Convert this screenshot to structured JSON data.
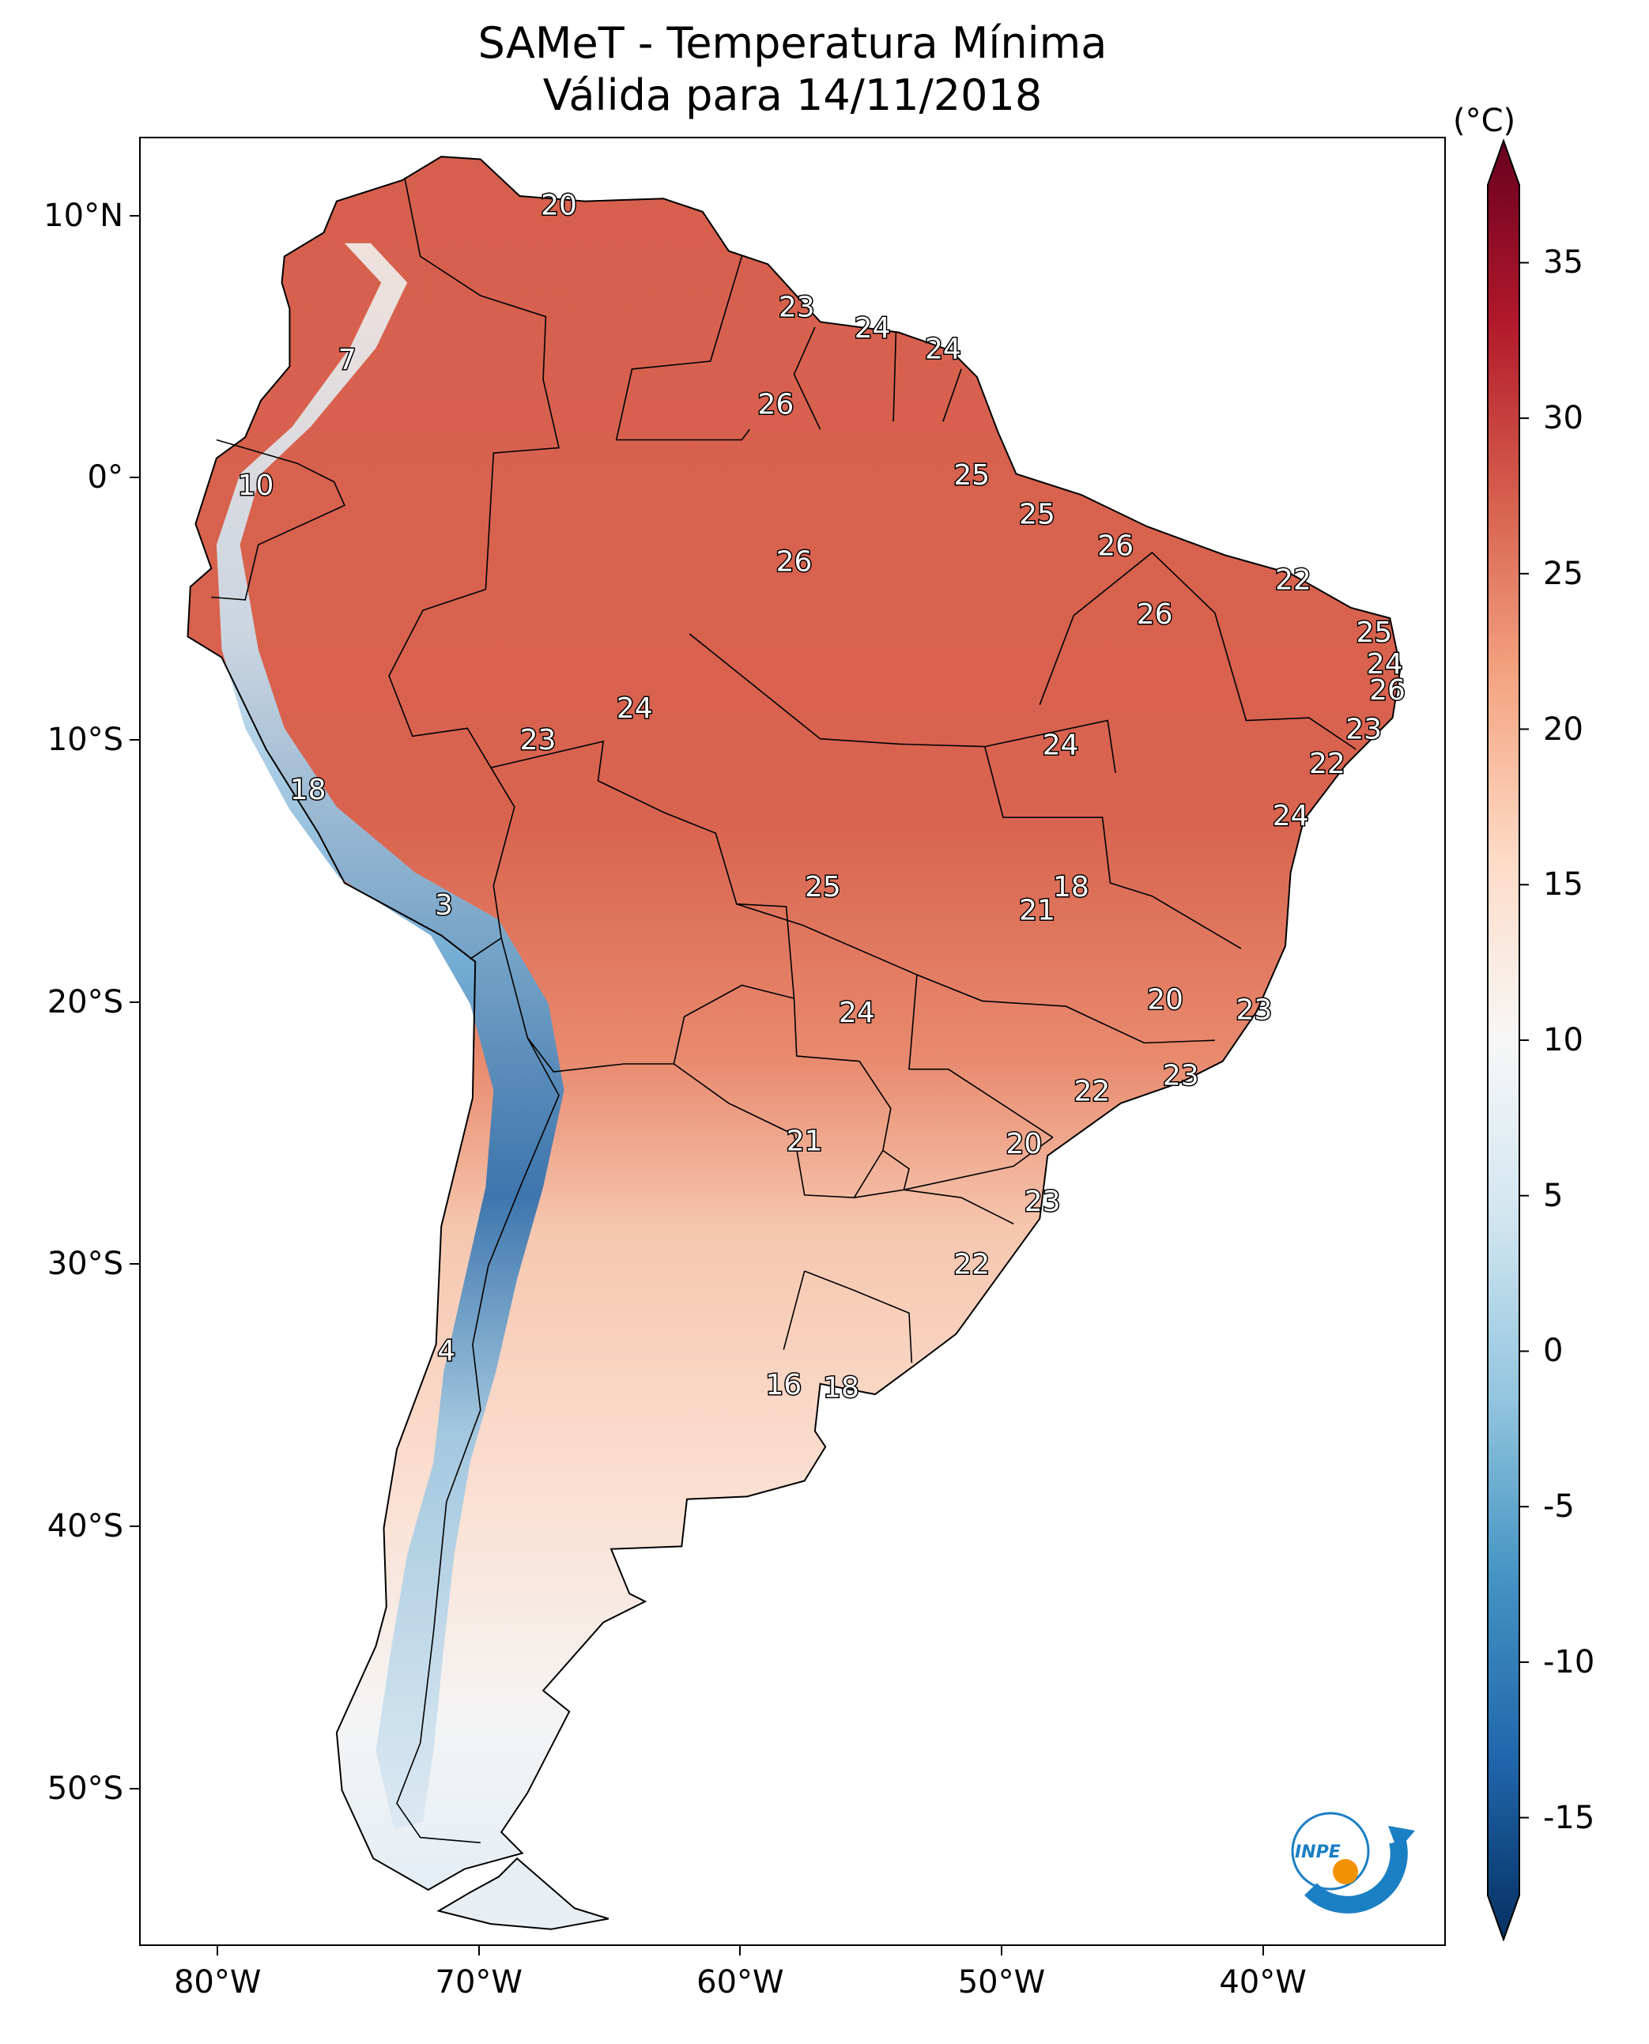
{
  "title": {
    "line1": "SAMeT - Temperatura Mínima",
    "line2": "Válida para 14/11/2018"
  },
  "map": {
    "extent": {
      "lon_min": -83,
      "lon_max": -33,
      "lat_min": -56,
      "lat_max": 13
    },
    "lat_ticks": [
      {
        "lat": 10,
        "label": "10°N"
      },
      {
        "lat": 0,
        "label": "0°"
      },
      {
        "lat": -10,
        "label": "10°S"
      },
      {
        "lat": -20,
        "label": "20°S"
      },
      {
        "lat": -30,
        "label": "30°S"
      },
      {
        "lat": -40,
        "label": "40°S"
      },
      {
        "lat": -50,
        "label": "50°S"
      }
    ],
    "lon_ticks": [
      {
        "lon": -80,
        "label": "80°W"
      },
      {
        "lon": -70,
        "label": "70°W"
      },
      {
        "lon": -60,
        "label": "60°W"
      },
      {
        "lon": -50,
        "label": "50°W"
      },
      {
        "lon": -40,
        "label": "40°W"
      }
    ],
    "station_labels": [
      {
        "lon": -67,
        "lat": 10.4,
        "value": "20"
      },
      {
        "lon": -57.9,
        "lat": 6.5,
        "value": "23"
      },
      {
        "lon": -55,
        "lat": 5.7,
        "value": "24"
      },
      {
        "lon": -52.3,
        "lat": 4.9,
        "value": "24"
      },
      {
        "lon": -75.1,
        "lat": 4.5,
        "value": "7"
      },
      {
        "lon": -58.7,
        "lat": 2.8,
        "value": "26"
      },
      {
        "lon": -51.2,
        "lat": 0.1,
        "value": "25"
      },
      {
        "lon": -78.6,
        "lat": -0.3,
        "value": "10"
      },
      {
        "lon": -48.7,
        "lat": -1.4,
        "value": "25"
      },
      {
        "lon": -45.7,
        "lat": -2.6,
        "value": "26"
      },
      {
        "lon": -58,
        "lat": -3.2,
        "value": "26"
      },
      {
        "lon": -38.9,
        "lat": -3.9,
        "value": "22"
      },
      {
        "lon": -44.2,
        "lat": -5.2,
        "value": "26"
      },
      {
        "lon": -35.8,
        "lat": -5.9,
        "value": "25"
      },
      {
        "lon": -35.4,
        "lat": -7.1,
        "value": "24"
      },
      {
        "lon": -35.3,
        "lat": -8.1,
        "value": "26"
      },
      {
        "lon": -36.2,
        "lat": -9.6,
        "value": "23"
      },
      {
        "lon": -37.6,
        "lat": -10.9,
        "value": "22"
      },
      {
        "lon": -47.8,
        "lat": -10.2,
        "value": "24"
      },
      {
        "lon": -64.1,
        "lat": -8.8,
        "value": "24"
      },
      {
        "lon": -67.8,
        "lat": -10,
        "value": "23"
      },
      {
        "lon": -76.6,
        "lat": -11.9,
        "value": "18"
      },
      {
        "lon": -39,
        "lat": -12.9,
        "value": "24"
      },
      {
        "lon": -47.4,
        "lat": -15.6,
        "value": "18"
      },
      {
        "lon": -48.7,
        "lat": -16.5,
        "value": "21"
      },
      {
        "lon": -56.9,
        "lat": -15.6,
        "value": "25"
      },
      {
        "lon": -71.4,
        "lat": -16.3,
        "value": "3"
      },
      {
        "lon": -43.8,
        "lat": -19.9,
        "value": "20"
      },
      {
        "lon": -40.4,
        "lat": -20.3,
        "value": "23"
      },
      {
        "lon": -55.6,
        "lat": -20.4,
        "value": "24"
      },
      {
        "lon": -43.2,
        "lat": -22.8,
        "value": "23"
      },
      {
        "lon": -46.6,
        "lat": -23.4,
        "value": "22"
      },
      {
        "lon": -57.6,
        "lat": -25.3,
        "value": "21"
      },
      {
        "lon": -49.2,
        "lat": -25.4,
        "value": "20"
      },
      {
        "lon": -48.5,
        "lat": -27.6,
        "value": "23"
      },
      {
        "lon": -51.2,
        "lat": -30,
        "value": "22"
      },
      {
        "lon": -71.3,
        "lat": -33.3,
        "value": "4"
      },
      {
        "lon": -56.2,
        "lat": -34.7,
        "value": "18"
      },
      {
        "lon": -58.4,
        "lat": -34.6,
        "value": "16"
      }
    ]
  },
  "colorbar": {
    "unit": "(°C)",
    "vmin": -17.5,
    "vmax": 37.5,
    "ticks": [
      {
        "value": 35,
        "label": "35"
      },
      {
        "value": 30,
        "label": "30"
      },
      {
        "value": 25,
        "label": "25"
      },
      {
        "value": 20,
        "label": "20"
      },
      {
        "value": 15,
        "label": "15"
      },
      {
        "value": 10,
        "label": "10"
      },
      {
        "value": 5,
        "label": "5"
      },
      {
        "value": 0,
        "label": "0"
      },
      {
        "value": -5,
        "label": "-5"
      },
      {
        "value": -10,
        "label": "-10"
      },
      {
        "value": -15,
        "label": "-15"
      }
    ],
    "colors": [
      "#053061",
      "#2166ac",
      "#4393c3",
      "#92c5de",
      "#d1e5f0",
      "#f7f7f7",
      "#fddbc7",
      "#f4a582",
      "#d6604d",
      "#b2182b",
      "#67001f"
    ]
  },
  "logo": {
    "text": "INPE",
    "arc_color": "#1b7fc4",
    "dot_color": "#f39200"
  }
}
